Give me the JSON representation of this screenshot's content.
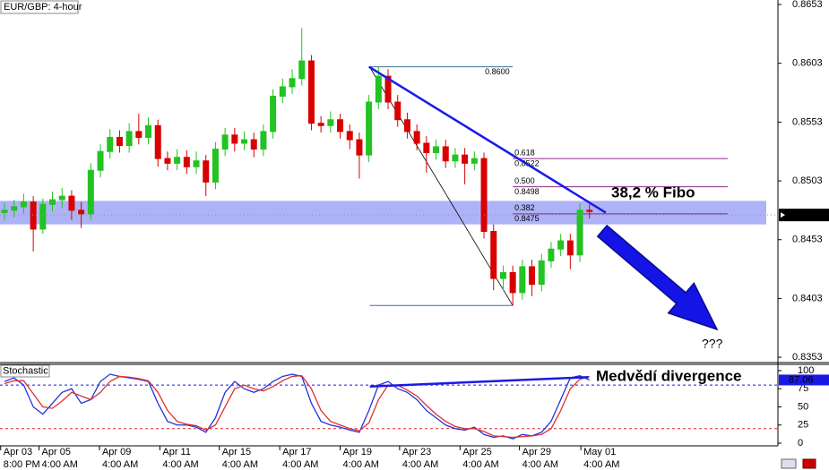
{
  "chart_data": [
    {
      "type": "candlestick",
      "title": "EUR/GBP: 4-hour",
      "xlim": [
        -0.47,
        80.65
      ],
      "xticks": [
        {
          "value": -0.4,
          "label": "Apr 03"
        },
        {
          "value": 3.6,
          "label": "Apr 05"
        },
        {
          "value": 9.9,
          "label": "Apr 09"
        },
        {
          "value": 16.2,
          "label": "Apr 11"
        },
        {
          "value": 22.4,
          "label": "Apr 15"
        },
        {
          "value": 28.7,
          "label": "Apr 17"
        },
        {
          "value": 35.0,
          "label": "Apr 19"
        },
        {
          "value": 41.2,
          "label": "Apr 23"
        },
        {
          "value": 47.5,
          "label": "Apr 25"
        },
        {
          "value": 53.7,
          "label": "Apr 29"
        },
        {
          "value": 60.1,
          "label": "May 01"
        }
      ],
      "xtick_times": [
        "8:00 PM",
        "4:00 AM",
        "4:00 AM",
        "4:00 AM",
        "4:00 AM",
        "4:00 AM",
        "4:00 AM",
        "4:00 AM",
        "4:00 AM",
        "4:00 AM",
        "4:00 AM"
      ],
      "ylim": [
        0.83485,
        0.86568
      ],
      "yticks": [
        0.8653,
        0.8603,
        0.8553,
        0.8503,
        0.8453,
        0.8403,
        0.8353
      ],
      "up_color": "#22c322",
      "down_color": "#d80000",
      "open": [
        0.8476,
        0.8478,
        0.8481,
        0.8485,
        0.8462,
        0.8483,
        0.8487,
        0.849,
        0.8478,
        0.8475,
        0.8512,
        0.8528,
        0.854,
        0.8533,
        0.8545,
        0.854,
        0.855,
        0.8522,
        0.8518,
        0.8523,
        0.8515,
        0.852,
        0.8502,
        0.853,
        0.8542,
        0.8535,
        0.8538,
        0.853,
        0.8545,
        0.8575,
        0.8583,
        0.859,
        0.8605,
        0.8552,
        0.855,
        0.8555,
        0.8545,
        0.8538,
        0.8525,
        0.857,
        0.8592,
        0.857,
        0.8555,
        0.8545,
        0.8535,
        0.8527,
        0.8532,
        0.852,
        0.8525,
        0.8518,
        0.8522,
        0.846,
        0.842,
        0.8425,
        0.8408,
        0.843,
        0.8415,
        0.8435,
        0.8445,
        0.8452,
        0.844,
        0.8478
      ],
      "high": [
        0.8484,
        0.8487,
        0.8492,
        0.849,
        0.8488,
        0.8494,
        0.8497,
        0.8495,
        0.8485,
        0.8518,
        0.8534,
        0.8547,
        0.8546,
        0.8552,
        0.856,
        0.8557,
        0.8555,
        0.8528,
        0.853,
        0.8529,
        0.8528,
        0.8525,
        0.8536,
        0.8548,
        0.8548,
        0.8545,
        0.8544,
        0.8551,
        0.8581,
        0.859,
        0.8598,
        0.8633,
        0.861,
        0.8558,
        0.8562,
        0.856,
        0.8551,
        0.8544,
        0.8576,
        0.86,
        0.8598,
        0.8576,
        0.8561,
        0.8551,
        0.8541,
        0.8538,
        0.8538,
        0.8531,
        0.8531,
        0.8528,
        0.8527,
        0.8466,
        0.8431,
        0.8431,
        0.8436,
        0.8436,
        0.8441,
        0.8451,
        0.8458,
        0.8458,
        0.8484,
        0.8483
      ],
      "low": [
        0.847,
        0.8472,
        0.8475,
        0.8443,
        0.8458,
        0.8477,
        0.848,
        0.847,
        0.8463,
        0.847,
        0.8506,
        0.8522,
        0.8527,
        0.8527,
        0.8534,
        0.8534,
        0.8515,
        0.8512,
        0.8512,
        0.8509,
        0.8509,
        0.849,
        0.8496,
        0.8524,
        0.8528,
        0.8529,
        0.8523,
        0.8524,
        0.8539,
        0.8569,
        0.8577,
        0.8584,
        0.8546,
        0.8544,
        0.8544,
        0.8539,
        0.853,
        0.8505,
        0.8519,
        0.8564,
        0.8564,
        0.8549,
        0.8539,
        0.8529,
        0.851,
        0.8521,
        0.8514,
        0.8514,
        0.85,
        0.8512,
        0.8454,
        0.841,
        0.841,
        0.8397,
        0.8402,
        0.8405,
        0.8409,
        0.8429,
        0.8439,
        0.8428,
        0.8434,
        0.8471
      ],
      "close": [
        0.8478,
        0.8481,
        0.8485,
        0.8462,
        0.8483,
        0.8487,
        0.849,
        0.8478,
        0.8475,
        0.8512,
        0.8528,
        0.854,
        0.8533,
        0.8545,
        0.854,
        0.855,
        0.8522,
        0.8518,
        0.8523,
        0.8515,
        0.852,
        0.8502,
        0.853,
        0.8542,
        0.8535,
        0.8538,
        0.853,
        0.8545,
        0.8575,
        0.8583,
        0.859,
        0.8605,
        0.8552,
        0.855,
        0.8555,
        0.8545,
        0.8538,
        0.8525,
        0.857,
        0.8592,
        0.857,
        0.8555,
        0.8545,
        0.8535,
        0.8527,
        0.8532,
        0.852,
        0.8525,
        0.8518,
        0.8522,
        0.846,
        0.842,
        0.8425,
        0.8408,
        0.843,
        0.8415,
        0.8435,
        0.8445,
        0.8452,
        0.844,
        0.8478,
        0.8477
      ],
      "current_price": 0.8474,
      "zone": [
        0.8466,
        0.8486
      ],
      "trendline": {
        "x": [
          38,
          62.7
        ],
        "y": [
          0.86,
          0.8476
        ]
      },
      "fib": {
        "high": {
          "value": 0.86,
          "label": "0.8600"
        },
        "low": 0.8397,
        "high_index": 39,
        "low_index": 53,
        "levels": [
          {
            "ratio": 0.618,
            "price": 0.8522
          },
          {
            "ratio": {
              "value": 0.5,
              "label": "0.500"
            },
            "price": 0.8498
          },
          {
            "ratio": 0.382,
            "price": 0.8475
          }
        ]
      },
      "annotations": [
        "38,2 % Fibo",
        "???"
      ]
    },
    {
      "type": "line",
      "title": "Stochastic",
      "xlim": [
        -0.47,
        80.65
      ],
      "ylim": [
        -3.7,
        108.6
      ],
      "yticks": [
        100,
        75,
        50,
        25,
        0
      ],
      "levels": [
        80,
        20
      ],
      "series": [
        {
          "color": "#2233dd",
          "values": [
            85,
            90,
            80,
            50,
            40,
            55,
            70,
            75,
            55,
            60,
            85,
            95,
            92,
            90,
            88,
            85,
            55,
            30,
            25,
            25,
            22,
            15,
            35,
            70,
            85,
            75,
            70,
            75,
            85,
            92,
            95,
            92,
            55,
            30,
            25,
            22,
            18,
            15,
            45,
            80,
            85,
            75,
            70,
            60,
            45,
            35,
            25,
            20,
            18,
            22,
            12,
            8,
            10,
            6,
            12,
            10,
            15,
            30,
            60,
            90,
            93,
            87
          ]
        },
        {
          "color": "#e03030",
          "values": [
            82,
            86,
            86,
            68,
            50,
            48,
            58,
            70,
            65,
            60,
            70,
            85,
            92,
            91,
            89,
            86,
            70,
            45,
            30,
            26,
            24,
            18,
            25,
            50,
            75,
            80,
            75,
            72,
            78,
            86,
            92,
            93,
            75,
            45,
            30,
            25,
            20,
            17,
            28,
            60,
            80,
            80,
            73,
            65,
            52,
            40,
            30,
            23,
            20,
            20,
            16,
            10,
            9,
            8,
            9,
            10,
            12,
            20,
            45,
            75,
            88,
            92
          ]
        }
      ],
      "current_value": 87.06,
      "divergence_line": {
        "x": [
          38.1,
          60.9
        ],
        "y": [
          78,
          91
        ]
      },
      "annotation": "Medvědí divergence"
    }
  ]
}
